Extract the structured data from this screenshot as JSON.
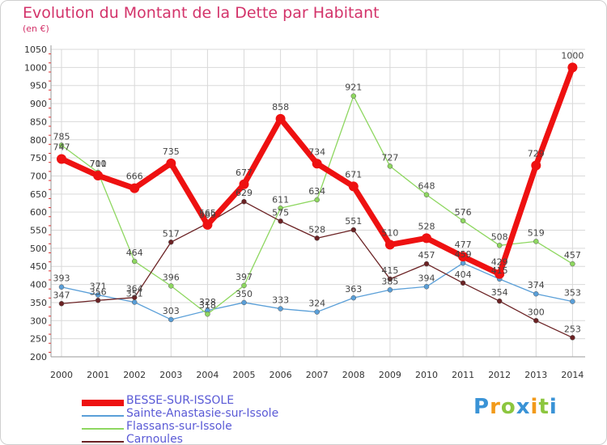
{
  "chart_data": {
    "type": "line",
    "title": "Evolution du Montant de la Dette par Habitant",
    "subtitle": "(en €)",
    "x": [
      "2000",
      "2001",
      "2002",
      "2003",
      "2004",
      "2005",
      "2006",
      "2007",
      "2008",
      "2009",
      "2010",
      "2011",
      "2012",
      "2013",
      "2014"
    ],
    "yticks": [
      200,
      250,
      300,
      350,
      400,
      450,
      500,
      550,
      600,
      650,
      700,
      750,
      800,
      850,
      900,
      950,
      1000,
      1050
    ],
    "ylim": [
      200,
      1050
    ],
    "grid": true,
    "legend_position": "bottom-left",
    "series": [
      {
        "name": "BESSE-SUR-ISSOLE",
        "color": "#ee1111",
        "values": [
          747,
          701,
          666,
          735,
          565,
          677,
          858,
          734,
          671,
          510,
          528,
          477,
          429,
          729,
          1000
        ]
      },
      {
        "name": "Sainte-Anastasie-sur-Issole",
        "color": "#5a9fd8",
        "values": [
          393,
          371,
          351,
          303,
          328,
          350,
          333,
          324,
          363,
          385,
          394,
          459,
          415,
          374,
          353
        ]
      },
      {
        "name": "Flassans-sur-Issole",
        "color": "#8ed760",
        "values": [
          785,
          710,
          464,
          396,
          318,
          397,
          611,
          634,
          921,
          727,
          648,
          576,
          508,
          519,
          457
        ]
      },
      {
        "name": "Carnoules",
        "color": "#6b2224",
        "values": [
          347,
          356,
          364,
          517,
          569,
          629,
          575,
          528,
          551,
          415,
          457,
          404,
          354,
          300,
          253
        ]
      }
    ]
  },
  "logo": {
    "text": "Proxiti",
    "letters": [
      {
        "ch": "P",
        "color": "#3a93d6"
      },
      {
        "ch": "r",
        "color": "#f29a1a"
      },
      {
        "ch": "o",
        "color": "#8cc63f"
      },
      {
        "ch": "x",
        "color": "#3a93d6"
      },
      {
        "ch": "i",
        "color": "#f29a1a"
      },
      {
        "ch": "t",
        "color": "#8cc63f"
      },
      {
        "ch": "i",
        "color": "#3a93d6"
      }
    ]
  }
}
